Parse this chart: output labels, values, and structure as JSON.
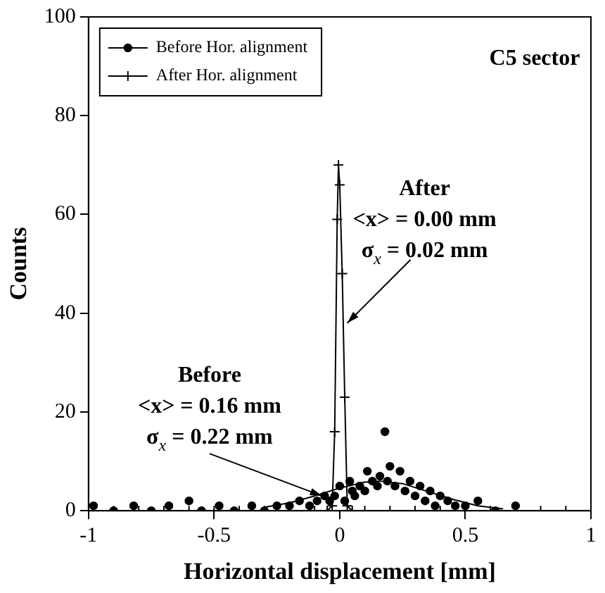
{
  "chart_data": {
    "type": "scatter",
    "xlabel": "Horizontal displacement [mm]",
    "ylabel": "Counts",
    "xlim": [
      -1,
      1
    ],
    "xticks": [
      -1,
      -0.5,
      0,
      0.5,
      1
    ],
    "ylim": [
      0,
      100
    ],
    "yticks": [
      0,
      20,
      40,
      60,
      80,
      100
    ],
    "grid": false,
    "legend": "top left",
    "series": [
      {
        "name": "Before Hor. alignment",
        "color": "#000000",
        "marker": "circle",
        "x": [
          -0.98,
          -0.9,
          -0.82,
          -0.75,
          -0.68,
          -0.6,
          -0.55,
          -0.48,
          -0.42,
          -0.35,
          -0.3,
          -0.25,
          -0.2,
          -0.16,
          -0.12,
          -0.09,
          -0.06,
          -0.04,
          -0.02,
          0.0,
          0.02,
          0.04,
          0.05,
          0.06,
          0.08,
          0.1,
          0.11,
          0.13,
          0.15,
          0.16,
          0.18,
          0.19,
          0.2,
          0.22,
          0.24,
          0.26,
          0.28,
          0.3,
          0.32,
          0.34,
          0.36,
          0.38,
          0.4,
          0.43,
          0.46,
          0.5,
          0.55,
          0.62,
          0.7
        ],
        "values": [
          1,
          0,
          1,
          0,
          1,
          2,
          0,
          1,
          0,
          1,
          0,
          1,
          1,
          2,
          1,
          2,
          3,
          2,
          3,
          5,
          2,
          6,
          4,
          3,
          5,
          4,
          8,
          6,
          5,
          7,
          16,
          6,
          9,
          5,
          8,
          4,
          6,
          3,
          5,
          2,
          4,
          1,
          3,
          2,
          1,
          1,
          2,
          0,
          1
        ]
      },
      {
        "color": "#000000",
        "type": "line",
        "marker": "none",
        "x": [
          -0.3,
          -0.2,
          -0.1,
          0.0,
          0.1,
          0.16,
          0.25,
          0.35,
          0.45,
          0.55,
          0.65
        ],
        "values": [
          0.7,
          1.6,
          3,
          4.6,
          5.8,
          6,
          5.5,
          3.9,
          2.3,
          1,
          0.4
        ]
      },
      {
        "name": "After Hor. alignment",
        "color": "#000000",
        "type": "line",
        "marker": "cross",
        "x": [
          -1,
          -0.9,
          -0.8,
          -0.7,
          -0.6,
          -0.5,
          -0.4,
          -0.3,
          -0.2,
          -0.1,
          -0.05,
          -0.03,
          -0.02,
          -0.01,
          -0.005,
          0.0,
          0.01,
          0.02,
          0.03,
          0.05,
          0.1,
          0.2,
          0.3,
          0.4,
          0.5,
          0.6,
          0.7,
          0.8,
          0.9,
          1
        ],
        "values": [
          0,
          0,
          0,
          0,
          0,
          0,
          0,
          0,
          0,
          0,
          0,
          1,
          16,
          59,
          70,
          66,
          48,
          23,
          1,
          0,
          0,
          0,
          0,
          0,
          0,
          0,
          0,
          0,
          0,
          0
        ]
      }
    ],
    "annotations": [
      "C5 sector",
      {
        "text": "After\n<x> = 0.00 mm\nσ$_{x}$ = 0.02 mm",
        "x": 0.03,
        "y": 38
      },
      {
        "text": "Before\n<x> = 0.16 mm\nσ$_{x}$ = 0.22 mm",
        "x": -0.07,
        "y": 3
      }
    ]
  }
}
